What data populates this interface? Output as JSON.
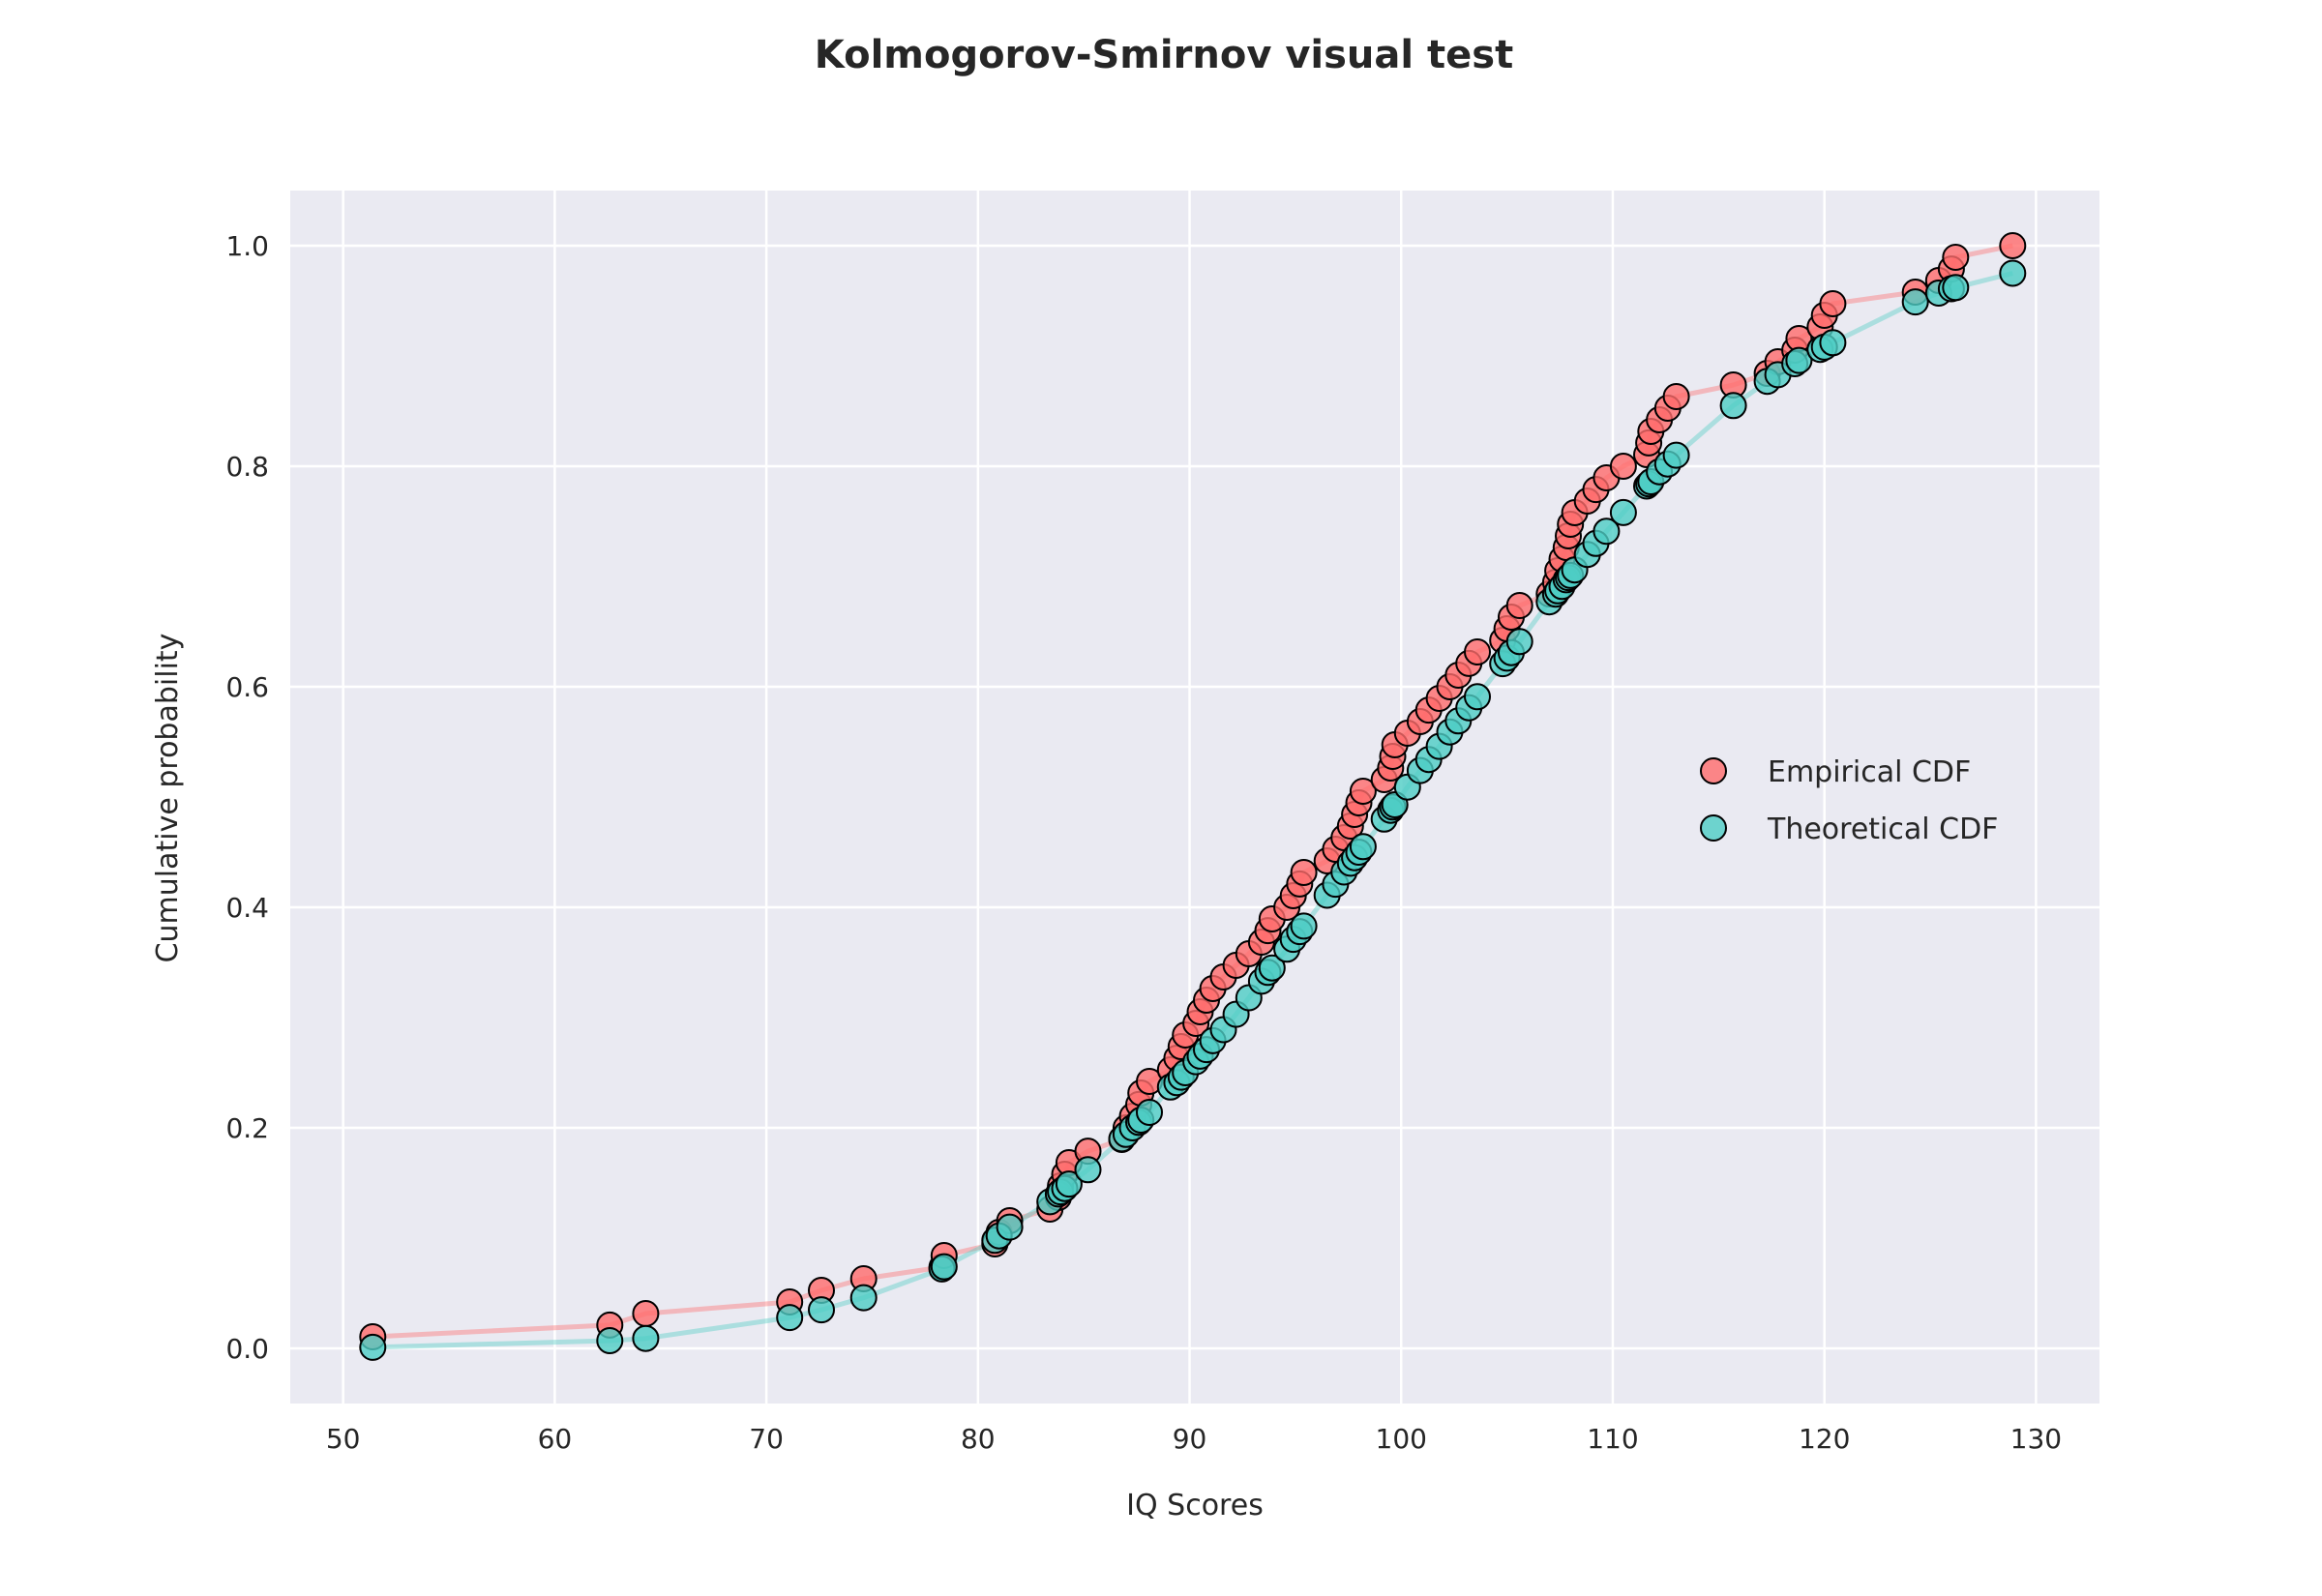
{
  "chart_data": {
    "type": "scatter",
    "title": "Kolmogorov-Smirnov visual test",
    "xlabel": "IQ Scores",
    "ylabel": "Cumulative probability",
    "xlim": [
      47.5,
      133
    ],
    "ylim": [
      -0.05,
      1.05
    ],
    "xticks": [
      50,
      60,
      70,
      80,
      90,
      100,
      110,
      120,
      130
    ],
    "yticks": [
      "0.0",
      "0.2",
      "0.4",
      "0.6",
      "0.8",
      "1.0"
    ],
    "grid": true,
    "legend_position": "right",
    "background": "#eaeaf2",
    "x": [
      51.4,
      62.6,
      64.3,
      71.1,
      72.6,
      74.6,
      78.3,
      78.4,
      80.8,
      81.0,
      81.5,
      83.4,
      83.8,
      83.9,
      84.1,
      84.3,
      85.2,
      86.8,
      87.0,
      87.3,
      87.6,
      87.7,
      88.1,
      89.1,
      89.4,
      89.6,
      89.8,
      90.3,
      90.5,
      90.8,
      91.1,
      91.6,
      92.2,
      92.8,
      93.4,
      93.7,
      93.9,
      94.6,
      94.9,
      95.2,
      95.4,
      96.5,
      96.9,
      97.3,
      97.6,
      97.8,
      98.0,
      98.2,
      99.2,
      99.5,
      99.6,
      99.7,
      100.3,
      100.9,
      101.3,
      101.8,
      102.3,
      102.7,
      103.2,
      103.6,
      104.8,
      105.0,
      105.2,
      105.6,
      107.0,
      107.3,
      107.4,
      107.6,
      107.8,
      107.9,
      108.0,
      108.2,
      108.8,
      109.2,
      109.7,
      110.5,
      111.6,
      111.7,
      111.8,
      112.2,
      112.6,
      113.0,
      115.7,
      117.3,
      117.8,
      118.6,
      118.8,
      119.8,
      120.0,
      120.4,
      124.3,
      125.4,
      126.0,
      126.2,
      128.9
    ],
    "series": [
      {
        "name": "Empirical CDF",
        "color": "#ff6b6b",
        "values": [
          0.0105,
          0.0211,
          0.0316,
          0.0421,
          0.0526,
          0.0632,
          0.0737,
          0.0842,
          0.0947,
          0.1053,
          0.1158,
          0.1263,
          0.1368,
          0.1474,
          0.1579,
          0.1684,
          0.1789,
          0.1895,
          0.2,
          0.2105,
          0.2211,
          0.2316,
          0.2421,
          0.2526,
          0.2632,
          0.2737,
          0.2842,
          0.2947,
          0.3053,
          0.3158,
          0.3263,
          0.3368,
          0.3474,
          0.3579,
          0.3684,
          0.3789,
          0.3895,
          0.4,
          0.4105,
          0.4211,
          0.4316,
          0.4421,
          0.4526,
          0.4632,
          0.4737,
          0.4842,
          0.4947,
          0.5053,
          0.5158,
          0.5263,
          0.5368,
          0.5474,
          0.5579,
          0.5684,
          0.5789,
          0.5895,
          0.6,
          0.6105,
          0.6211,
          0.6316,
          0.6421,
          0.6526,
          0.6632,
          0.6737,
          0.6842,
          0.6947,
          0.7053,
          0.7158,
          0.7263,
          0.7368,
          0.7474,
          0.7579,
          0.7684,
          0.7789,
          0.7895,
          0.8,
          0.8105,
          0.8211,
          0.8316,
          0.8421,
          0.8526,
          0.8632,
          0.8737,
          0.8842,
          0.8947,
          0.9053,
          0.9158,
          0.9263,
          0.9368,
          0.9474,
          0.9579,
          0.9684,
          0.9789,
          0.9895,
          1.0
        ]
      },
      {
        "name": "Theoretical CDF",
        "color": "#4ecdc4",
        "values": [
          0.001,
          0.007,
          0.009,
          0.028,
          0.035,
          0.046,
          0.072,
          0.074,
          0.098,
          0.102,
          0.11,
          0.133,
          0.14,
          0.142,
          0.145,
          0.149,
          0.162,
          0.19,
          0.194,
          0.2,
          0.205,
          0.207,
          0.214,
          0.237,
          0.241,
          0.246,
          0.25,
          0.26,
          0.265,
          0.271,
          0.279,
          0.289,
          0.303,
          0.318,
          0.333,
          0.341,
          0.345,
          0.362,
          0.371,
          0.378,
          0.383,
          0.411,
          0.421,
          0.432,
          0.44,
          0.445,
          0.45,
          0.455,
          0.48,
          0.488,
          0.491,
          0.493,
          0.509,
          0.524,
          0.534,
          0.546,
          0.559,
          0.569,
          0.581,
          0.591,
          0.621,
          0.626,
          0.631,
          0.641,
          0.677,
          0.684,
          0.687,
          0.691,
          0.697,
          0.699,
          0.701,
          0.706,
          0.72,
          0.73,
          0.741,
          0.758,
          0.782,
          0.784,
          0.786,
          0.795,
          0.802,
          0.81,
          0.855,
          0.877,
          0.883,
          0.893,
          0.896,
          0.906,
          0.908,
          0.912,
          0.949,
          0.957,
          0.961,
          0.962,
          0.975
        ]
      }
    ]
  }
}
